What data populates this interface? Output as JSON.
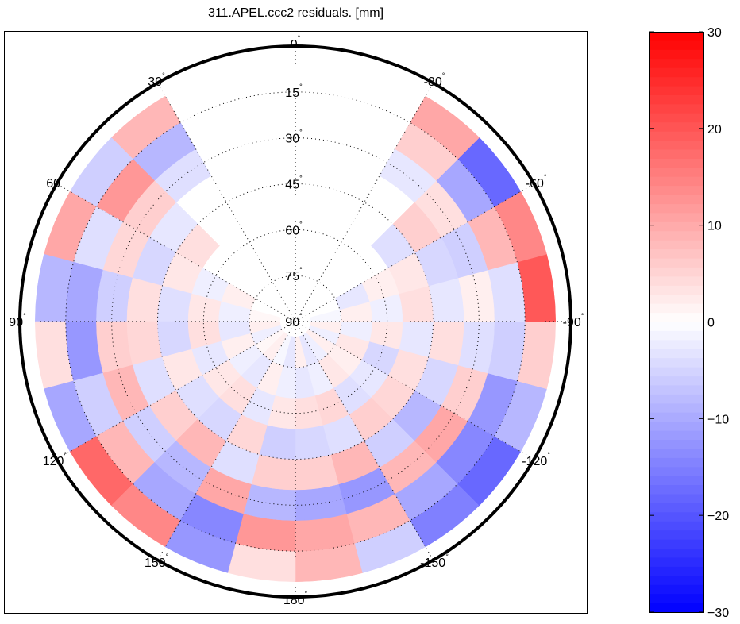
{
  "chart_data": {
    "type": "heatmap",
    "projection": "polar-skyplot",
    "title": "311.APEL.ccc2 residuals. [mm]",
    "azimuth_labels": [
      "0",
      "30",
      "60",
      "90",
      "120",
      "150",
      "180",
      "-150",
      "-120",
      "-90",
      "-60",
      "-30"
    ],
    "azimuth_label_values": [
      0,
      30,
      60,
      90,
      120,
      150,
      180,
      -150,
      -120,
      -90,
      -60,
      -30
    ],
    "elevation_labels": [
      "15",
      "30",
      "45",
      "60",
      "75",
      "90"
    ],
    "elevation_label_values": [
      15,
      30,
      45,
      60,
      75,
      90
    ],
    "degree_symbol": "°",
    "azimuth_bin_starts": [
      -180,
      -165,
      -150,
      -135,
      -120,
      -105,
      -90,
      -75,
      -60,
      -45,
      -30,
      -15,
      0,
      15,
      30,
      45,
      60,
      75,
      90,
      105,
      120,
      135,
      150,
      165
    ],
    "azimuth_bin_width": 15,
    "elevation_bins": [
      [
        5,
        15
      ],
      [
        15,
        25
      ],
      [
        25,
        35
      ],
      [
        35,
        45
      ],
      [
        45,
        55
      ],
      [
        55,
        65
      ],
      [
        65,
        75
      ],
      [
        75,
        85
      ]
    ],
    "values": [
      [
        8,
        -6,
        -15,
        -18,
        -8,
        6,
        20,
        14,
        -18,
        10,
        null,
        null,
        null,
        null,
        8,
        -6,
        10,
        -8,
        4,
        -10,
        18,
        14,
        -12,
        4
      ],
      [
        10,
        8,
        -10,
        -14,
        -12,
        -6,
        -4,
        8,
        -10,
        6,
        null,
        null,
        null,
        null,
        -8,
        12,
        -4,
        -10,
        -12,
        -6,
        8,
        -10,
        -14,
        12
      ],
      [
        -10,
        -12,
        8,
        10,
        6,
        -4,
        2,
        -6,
        4,
        -3,
        null,
        null,
        null,
        null,
        -4,
        6,
        5,
        -6,
        6,
        8,
        -6,
        -8,
        10,
        -8
      ],
      [
        6,
        8,
        -6,
        -8,
        -5,
        4,
        -3,
        -5,
        6,
        null,
        null,
        null,
        null,
        null,
        null,
        -3,
        -5,
        4,
        5,
        -4,
        6,
        8,
        -4,
        6
      ],
      [
        -5,
        -4,
        6,
        5,
        4,
        -3,
        4,
        3,
        -4,
        null,
        null,
        null,
        null,
        null,
        null,
        4,
        3,
        -4,
        -5,
        3,
        -4,
        -5,
        5,
        -6
      ],
      [
        4,
        5,
        -4,
        -3,
        -5,
        3,
        -2,
        2,
        null,
        null,
        null,
        null,
        null,
        null,
        null,
        null,
        -2,
        3,
        4,
        -3,
        3,
        4,
        -3,
        3
      ],
      [
        -3,
        -2,
        3,
        2,
        3,
        -2,
        2,
        -3,
        null,
        null,
        null,
        null,
        null,
        null,
        null,
        null,
        2,
        -2,
        -3,
        2,
        -2,
        -3,
        2,
        -2
      ],
      [
        2,
        -3,
        -2,
        2,
        -2,
        2,
        -1,
        null,
        null,
        null,
        null,
        null,
        null,
        null,
        null,
        null,
        null,
        1,
        2,
        -2,
        1,
        2,
        -1,
        -3
      ]
    ],
    "colorbar": {
      "range": [
        -30,
        30
      ],
      "ticks": [
        30,
        20,
        10,
        0,
        -10,
        -20,
        -30
      ],
      "tick_labels": [
        "30",
        "20",
        "10",
        "0",
        "−10",
        "−20",
        "−30"
      ],
      "low_color": "#0000ff",
      "mid_color": "#ffffff",
      "high_color": "#ff0000",
      "levels": 64
    }
  }
}
